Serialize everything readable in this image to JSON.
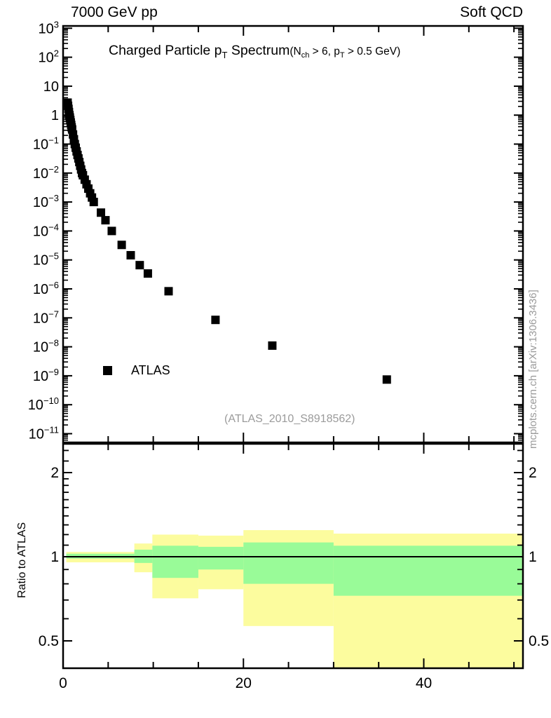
{
  "header": {
    "left": "7000 GeV pp",
    "right": "Soft QCD"
  },
  "plot_title": {
    "segments": [
      {
        "t": "Charged Particle p"
      },
      {
        "t": "T",
        "sub": true
      },
      {
        "t": " Spectrum"
      }
    ],
    "cut_segments": [
      {
        "t": "(N"
      },
      {
        "t": "ch",
        "sub": true
      },
      {
        "t": " > 6, p"
      },
      {
        "t": "T",
        "sub": true
      },
      {
        "t": " > 0.5 GeV)"
      }
    ]
  },
  "legend": {
    "entries": [
      {
        "label": "ATLAS",
        "marker": "filled-square",
        "color": "#000000"
      }
    ]
  },
  "watermark": "(ATLAS_2010_S8918562)",
  "side_note": "mcplots.cern.ch [arXiv:1306.3436]",
  "colors": {
    "axis": "#000000",
    "gray_text": "#9b9b9b",
    "yellow_band": "#fcfc9e",
    "green_band": "#99fb98",
    "marker": "#000000"
  },
  "chart_data": [
    {
      "type": "scatter",
      "panel": "main",
      "title": "Charged Particle pT Spectrum (Nch > 6, pT > 0.5 GeV)",
      "x_range": [
        0,
        51
      ],
      "x_major_ticks": [
        0,
        20,
        40
      ],
      "x_minor_step": 5,
      "y_scale": "log10",
      "y_range_exp": [
        -11.3,
        3.08
      ],
      "y_major_exponents": [
        3,
        2,
        1,
        0,
        -1,
        -2,
        -3,
        -4,
        -5,
        -6,
        -7,
        -8,
        -9,
        -10,
        -11
      ],
      "series": [
        {
          "name": "ATLAS",
          "marker": "filled-square",
          "color": "#000000",
          "points": [
            [
              0.5,
              2.7
            ],
            [
              0.55,
              2.1
            ],
            [
              0.6,
              1.64
            ],
            [
              0.65,
              1.28
            ],
            [
              0.7,
              1.0
            ],
            [
              0.75,
              0.83
            ],
            [
              0.8,
              0.68
            ],
            [
              0.85,
              0.56
            ],
            [
              0.9,
              0.46
            ],
            [
              0.95,
              0.38
            ],
            [
              1.0,
              0.32
            ],
            [
              1.1,
              0.215
            ],
            [
              1.2,
              0.147
            ],
            [
              1.3,
              0.1
            ],
            [
              1.4,
              0.075
            ],
            [
              1.5,
              0.056
            ],
            [
              1.6,
              0.042
            ],
            [
              1.7,
              0.032
            ],
            [
              1.8,
              0.024
            ],
            [
              1.9,
              0.0178
            ],
            [
              2.0,
              0.0133
            ],
            [
              2.1,
              0.01
            ],
            [
              2.2,
              0.0084
            ],
            [
              2.4,
              0.0059
            ],
            [
              2.6,
              0.0041
            ],
            [
              2.8,
              0.0029
            ],
            [
              3.0,
              0.002
            ],
            [
              3.2,
              0.00143
            ],
            [
              3.4,
              0.001
            ],
            [
              4.2,
              0.00043
            ],
            [
              4.7,
              0.000235
            ],
            [
              5.4,
              0.0001
            ],
            [
              6.5,
              3.3e-05
            ],
            [
              7.5,
              1.45e-05
            ],
            [
              8.5,
              6.6e-06
            ],
            [
              9.4,
              3.4e-06
            ],
            [
              11.7,
              8.3e-07
            ],
            [
              16.9,
              8.5e-08
            ],
            [
              23.2,
              1.1e-08
            ],
            [
              35.9,
              7.4e-10
            ]
          ]
        }
      ]
    },
    {
      "type": "band-steps",
      "panel": "ratio",
      "ylabel": "Ratio to ATLAS",
      "y_scale": "log",
      "y_range": [
        0.4,
        2.53
      ],
      "y_major_ticks": [
        0.5,
        1,
        2
      ],
      "y_minor_ticks": [
        0.6,
        0.7,
        0.8,
        0.9,
        1.1,
        1.2,
        1.3,
        1.4,
        1.5,
        1.6,
        1.7,
        1.8,
        1.9,
        2.2,
        2.4
      ],
      "x_range": [
        0,
        51
      ],
      "x_major_ticks": [
        0,
        20,
        40
      ],
      "x_minor_step": 5,
      "reference_line": 1,
      "segments": [
        {
          "x": [
            0.35,
            7.9
          ],
          "yellow": [
            0.955,
            1.04
          ],
          "green": [
            0.985,
            1.025
          ]
        },
        {
          "x": [
            7.9,
            9.9
          ],
          "yellow": [
            0.88,
            1.115
          ],
          "green": [
            0.95,
            1.06
          ]
        },
        {
          "x": [
            9.9,
            15
          ],
          "yellow": [
            0.71,
            1.2
          ],
          "green": [
            0.84,
            1.095
          ]
        },
        {
          "x": [
            15,
            20
          ],
          "yellow": [
            0.765,
            1.19
          ],
          "green": [
            0.9,
            1.085
          ]
        },
        {
          "x": [
            20,
            30
          ],
          "yellow": [
            0.565,
            1.245
          ],
          "green": [
            0.8,
            1.125
          ]
        },
        {
          "x": [
            30,
            51
          ],
          "yellow": [
            0.3,
            1.21
          ],
          "green": [
            0.725,
            1.095
          ]
        }
      ]
    }
  ]
}
